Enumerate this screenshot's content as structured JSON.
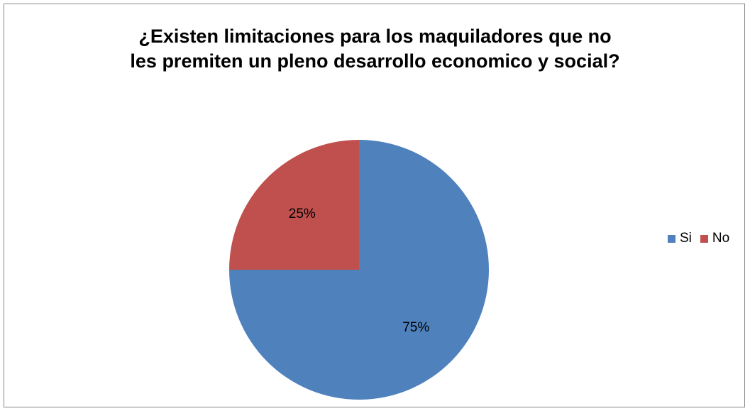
{
  "chart_data": {
    "type": "pie",
    "title_lines": [
      "¿Existen limitaciones para los maquiladores que no",
      "les premiten un pleno desarrollo economico y social?"
    ],
    "categories": [
      "Si",
      "No"
    ],
    "values": [
      75,
      25
    ],
    "data_labels": [
      "75%",
      "25%"
    ],
    "colors": [
      "#4F81BD",
      "#C0504D"
    ],
    "legend_position": "right"
  }
}
